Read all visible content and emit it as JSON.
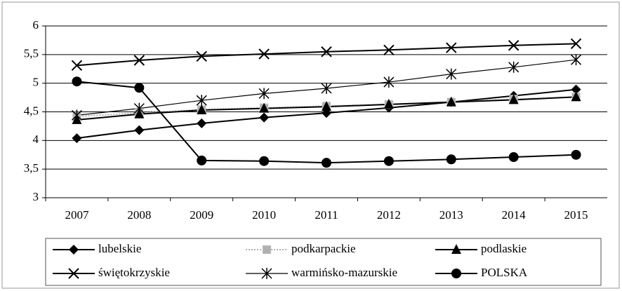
{
  "chart_data": {
    "type": "line",
    "categories": [
      "2007",
      "2008",
      "2009",
      "2010",
      "2011",
      "2012",
      "2013",
      "2014",
      "2015"
    ],
    "series": [
      {
        "name": "lubelskie",
        "color": "#000000",
        "marker": "diamond",
        "values": [
          4.04,
          4.18,
          4.3,
          4.4,
          4.48,
          4.57,
          4.67,
          4.78,
          4.89
        ]
      },
      {
        "name": "podkarpackie",
        "color": "#b0b0b0",
        "marker": "square",
        "dotted": true,
        "values": [
          4.42,
          4.48,
          4.54,
          4.57,
          4.6,
          4.63,
          4.67,
          4.72,
          4.76
        ]
      },
      {
        "name": "podlaskie",
        "color": "#000000",
        "marker": "triangle",
        "values": [
          4.36,
          4.46,
          4.53,
          4.56,
          4.59,
          4.63,
          4.67,
          4.71,
          4.76
        ]
      },
      {
        "name": "świętokrzyskie",
        "color": "#000000",
        "marker": "x",
        "values": [
          5.31,
          5.4,
          5.47,
          5.51,
          5.55,
          5.58,
          5.62,
          5.66,
          5.69
        ]
      },
      {
        "name": "warmińsko-mazurskie",
        "color": "#000000",
        "marker": "asterisk",
        "thin": true,
        "values": [
          4.44,
          4.56,
          4.7,
          4.82,
          4.91,
          5.02,
          5.16,
          5.28,
          5.41
        ]
      },
      {
        "name": "POLSKA",
        "color": "#000000",
        "marker": "circle",
        "values": [
          5.03,
          4.92,
          3.65,
          3.64,
          3.61,
          3.64,
          3.67,
          3.71,
          3.75
        ]
      }
    ],
    "ylim": [
      3,
      6
    ],
    "yticks": [
      3,
      {
        "value": 3.5,
        "label": "3,5"
      },
      4,
      {
        "value": 4.5,
        "label": "4,5"
      },
      5,
      {
        "value": 5.5,
        "label": "5,5"
      },
      6
    ],
    "grid": true,
    "legend": "bottom"
  }
}
